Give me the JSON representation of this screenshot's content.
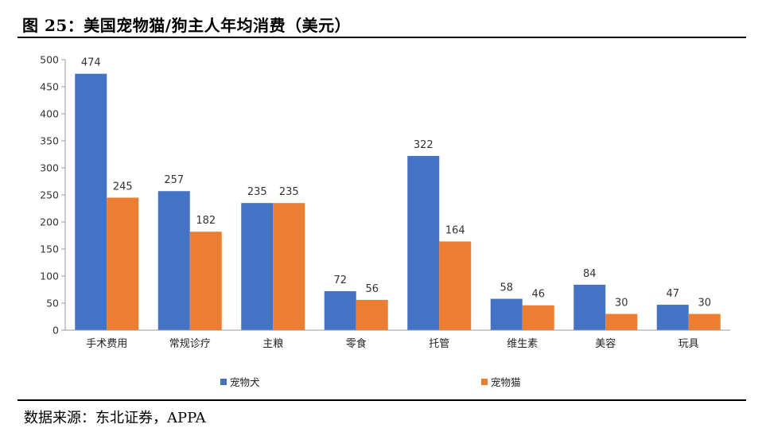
{
  "figure": {
    "title": "图 25：美国宠物猫/狗主人年均消费（美元）",
    "source": "数据来源：东北证券，APPA"
  },
  "chart_data": {
    "type": "bar",
    "categories": [
      "手术费用",
      "常规诊疗",
      "主粮",
      "零食",
      "托管",
      "维生素",
      "美容",
      "玩具"
    ],
    "series": [
      {
        "name": "宠物犬",
        "color": "#4472C4",
        "values": [
          474,
          257,
          235,
          72,
          322,
          58,
          84,
          47
        ]
      },
      {
        "name": "宠物猫",
        "color": "#ED7D31",
        "values": [
          245,
          182,
          235,
          56,
          164,
          46,
          30,
          30
        ]
      }
    ],
    "ylim": [
      0,
      500
    ],
    "yticks": [
      0,
      50,
      100,
      150,
      200,
      250,
      300,
      350,
      400,
      450,
      500
    ],
    "grid": false,
    "legend_position": "bottom",
    "data_labels": true
  }
}
